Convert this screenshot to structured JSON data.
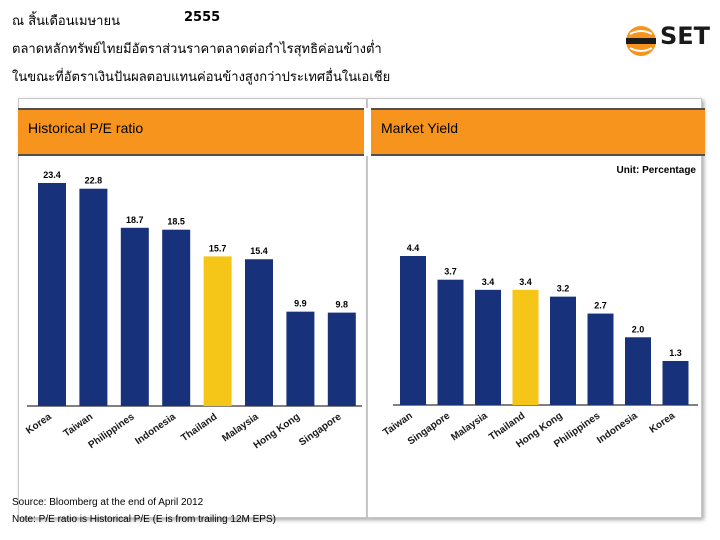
{
  "header": {
    "line1_prefix": "ณ สิ้นเดือนเมษายน",
    "line1_year": "2555",
    "line2": "ตลาดหลักทรัพย์ไทยมีอัตราส่วนราคาตลาดต่อกำไรสุทธิค่อนข้างต่ำ",
    "line3": "ในขณะที่อัตราเงินปันผลตอบแทนค่อนข้างสูงกว่าประเทศอื่นในเอเชีย"
  },
  "logo": {
    "text": "SET",
    "colors": {
      "accent": "#f7941d",
      "dark": "#1a1a1a"
    }
  },
  "colors": {
    "bar": "#17327a",
    "highlight": "#f5c518",
    "header": "#f7941d"
  },
  "unit_label": "Unit: Percentage",
  "footer": {
    "source": "Source: Bloomberg at the end of April 2012",
    "note": "Note: P/E ratio is Historical P/E (E is from trailing 12M EPS)"
  },
  "chart_data": [
    {
      "type": "bar",
      "title": "Historical P/E ratio",
      "categories": [
        "Korea",
        "Taiwan",
        "Philippines",
        "Indonesia",
        "Thailand",
        "Malaysia",
        "Hong Kong",
        "Singapore"
      ],
      "values": [
        23.4,
        22.8,
        18.7,
        18.5,
        15.7,
        15.4,
        9.9,
        9.8
      ],
      "value_labels": [
        "23.4",
        "22.8",
        "18.7",
        "18.5",
        "15.7",
        "15.4",
        "9.9",
        "9.8"
      ],
      "highlight": "Thailand",
      "ylim": [
        0,
        23.4
      ]
    },
    {
      "type": "bar",
      "title": "Market Yield",
      "unit": "Percentage",
      "categories": [
        "Taiwan",
        "Singapore",
        "Malaysia",
        "Thailand",
        "Hong Kong",
        "Philippines",
        "Indonesia",
        "Korea"
      ],
      "values": [
        4.4,
        3.7,
        3.4,
        3.4,
        3.2,
        2.7,
        2.0,
        1.3
      ],
      "value_labels": [
        "4.4",
        "3.7",
        "3.4",
        "3.4",
        "3.2",
        "2.7",
        "2.0",
        "1.3"
      ],
      "highlight": "Thailand",
      "ylim": [
        0,
        4.4
      ]
    }
  ]
}
